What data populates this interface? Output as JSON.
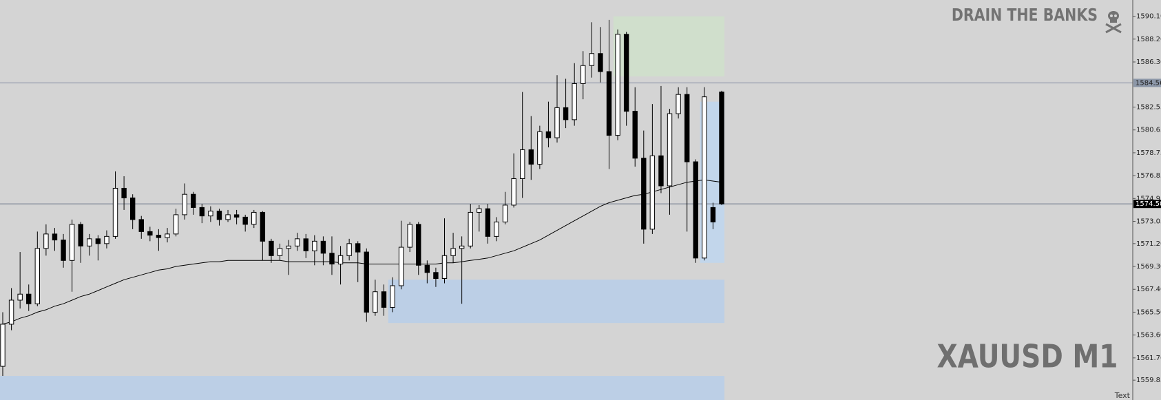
{
  "chart_data": {
    "type": "candlestick",
    "watermark_title": "DRAIN THE BANKS",
    "symbol": "XAUUSD M1",
    "corner_text": "Text",
    "ylim": [
      1558.2,
      1591.45
    ],
    "yticks": [
      {
        "value": 1590.1,
        "label": "1590.10"
      },
      {
        "value": 1588.2,
        "label": "1588.20"
      },
      {
        "value": 1586.3,
        "label": "1586.30"
      },
      1582.55,
      1580.65,
      1578.75,
      1576.85,
      1574.95,
      1573.05,
      {
        "value": 1571.2,
        "label": "1571.20"
      },
      {
        "value": 1569.3,
        "label": "1569.30"
      },
      {
        "value": 1567.4,
        "label": "1567.40"
      },
      {
        "value": 1565.5,
        "label": "1565.50"
      },
      {
        "value": 1563.6,
        "label": "1563.60"
      },
      {
        "value": 1561.7,
        "label": "1561.70"
      },
      1559.85
    ],
    "price_lines": [
      1584.56
    ],
    "current_price": {
      "value": 1574.5,
      "label": "1574.50"
    },
    "bull_color": "#ffffff",
    "bear_color": "#000000",
    "open": [
      1561.0,
      1564.5,
      1566.5,
      1567.0,
      1566.2,
      1570.8,
      1572.0,
      1571.5,
      1569.8,
      1572.8,
      1571.0,
      1571.6,
      1571.2,
      1571.8,
      1575.8,
      1575.0,
      1573.2,
      1572.2,
      1571.9,
      1571.7,
      1572.0,
      1573.6,
      1575.3,
      1574.2,
      1573.5,
      1573.9,
      1573.2,
      1573.6,
      1573.4,
      1572.8,
      1573.8,
      1571.4,
      1570.2,
      1570.8,
      1571.0,
      1571.6,
      1570.6,
      1571.4,
      1570.4,
      1569.5,
      1570.2,
      1571.2,
      1570.5,
      1565.5,
      1567.2,
      1565.9,
      1567.7,
      1570.9,
      1572.8,
      1569.4,
      1568.8,
      1568.3,
      1570.2,
      1570.8,
      1571.0,
      1573.8,
      1574.1,
      1571.8,
      1573.0,
      1574.4,
      1576.6,
      1579.0,
      1577.8,
      1580.5,
      1580.0,
      1582.5,
      1581.5,
      1584.5,
      1586.0,
      1587.0,
      1585.5,
      1580.2,
      1588.6,
      1582.2,
      1578.3,
      1572.4,
      1578.5,
      1576.0,
      1582.0,
      1583.6,
      1578.0,
      1570.0,
      1574.2,
      1583.8
    ],
    "high": [
      1565.5,
      1567.5,
      1570.5,
      1567.8,
      1572.2,
      1572.8,
      1572.5,
      1572.0,
      1573.2,
      1573.0,
      1572.0,
      1571.9,
      1572.3,
      1577.2,
      1576.8,
      1575.3,
      1573.5,
      1572.6,
      1572.4,
      1572.5,
      1574.1,
      1576.2,
      1575.5,
      1574.5,
      1574.3,
      1574.1,
      1574.0,
      1574.0,
      1573.6,
      1574.0,
      1573.9,
      1571.6,
      1571.2,
      1571.5,
      1572.1,
      1572.0,
      1571.9,
      1571.8,
      1571.8,
      1571.0,
      1571.6,
      1571.4,
      1570.8,
      1568.2,
      1567.8,
      1568.4,
      1573.1,
      1573.0,
      1573.0,
      1569.8,
      1569.2,
      1573.3,
      1572.1,
      1571.8,
      1574.5,
      1574.4,
      1574.5,
      1573.4,
      1575.5,
      1578.7,
      1583.8,
      1581.8,
      1581.0,
      1583.0,
      1585.2,
      1584.9,
      1586.2,
      1587.2,
      1589.6,
      1589.2,
      1589.8,
      1589.0,
      1588.8,
      1584.2,
      1580.6,
      1582.8,
      1584.3,
      1582.4,
      1584.2,
      1584.2,
      1578.2,
      1584.2,
      1574.6,
      1583.9
    ],
    "low": [
      1560.2,
      1564.0,
      1565.8,
      1565.6,
      1566.0,
      1570.2,
      1570.6,
      1569.2,
      1567.2,
      1569.6,
      1570.2,
      1569.8,
      1570.8,
      1571.6,
      1574.0,
      1572.4,
      1571.6,
      1571.4,
      1570.6,
      1571.3,
      1571.8,
      1573.2,
      1573.6,
      1572.9,
      1573.0,
      1572.7,
      1573.0,
      1572.8,
      1572.2,
      1572.5,
      1569.8,
      1569.6,
      1569.8,
      1568.6,
      1570.6,
      1570.0,
      1569.4,
      1569.4,
      1568.6,
      1567.8,
      1569.8,
      1568.0,
      1564.7,
      1565.2,
      1565.2,
      1565.5,
      1567.4,
      1570.5,
      1568.6,
      1567.9,
      1567.6,
      1567.9,
      1569.6,
      1566.2,
      1570.8,
      1572.2,
      1571.2,
      1571.4,
      1572.8,
      1574.2,
      1575.0,
      1576.5,
      1577.4,
      1579.2,
      1579.6,
      1580.8,
      1581.0,
      1583.2,
      1585.0,
      1584.6,
      1577.4,
      1579.8,
      1581.0,
      1577.6,
      1571.2,
      1572.0,
      1575.4,
      1573.6,
      1581.6,
      1572.2,
      1569.6,
      1569.8,
      1572.4,
      1574.4
    ],
    "close": [
      1564.5,
      1566.5,
      1567.0,
      1566.2,
      1570.8,
      1572.0,
      1571.5,
      1569.8,
      1572.8,
      1571.0,
      1571.6,
      1571.2,
      1571.8,
      1575.8,
      1575.0,
      1573.2,
      1572.2,
      1571.9,
      1571.7,
      1572.0,
      1573.6,
      1575.3,
      1574.2,
      1573.5,
      1573.9,
      1573.2,
      1573.6,
      1573.4,
      1572.8,
      1573.8,
      1571.4,
      1570.2,
      1570.8,
      1571.0,
      1571.6,
      1570.6,
      1571.4,
      1570.4,
      1569.5,
      1570.2,
      1571.2,
      1570.5,
      1565.5,
      1567.2,
      1565.9,
      1567.7,
      1570.9,
      1572.8,
      1569.4,
      1568.8,
      1568.3,
      1570.2,
      1570.8,
      1571.0,
      1573.8,
      1574.1,
      1571.8,
      1573.0,
      1574.4,
      1576.6,
      1579.0,
      1577.8,
      1580.5,
      1580.0,
      1582.5,
      1581.5,
      1584.5,
      1586.0,
      1587.0,
      1585.5,
      1580.2,
      1588.6,
      1582.2,
      1578.3,
      1572.4,
      1578.5,
      1576.0,
      1582.0,
      1583.6,
      1578.0,
      1570.0,
      1583.4,
      1573.0,
      1574.5
    ],
    "moving_average": {
      "color": "#000000",
      "values": [
        1564.5,
        1564.7,
        1565.0,
        1565.2,
        1565.5,
        1565.7,
        1566.0,
        1566.2,
        1566.5,
        1566.8,
        1567.0,
        1567.3,
        1567.6,
        1567.9,
        1568.2,
        1568.4,
        1568.6,
        1568.8,
        1569.0,
        1569.1,
        1569.3,
        1569.4,
        1569.5,
        1569.6,
        1569.7,
        1569.7,
        1569.8,
        1569.8,
        1569.8,
        1569.8,
        1569.8,
        1569.8,
        1569.8,
        1569.7,
        1569.7,
        1569.7,
        1569.7,
        1569.7,
        1569.7,
        1569.6,
        1569.6,
        1569.6,
        1569.5,
        1569.5,
        1569.5,
        1569.5,
        1569.5,
        1569.5,
        1569.5,
        1569.5,
        1569.5,
        1569.6,
        1569.6,
        1569.7,
        1569.8,
        1569.9,
        1570.0,
        1570.2,
        1570.4,
        1570.6,
        1570.9,
        1571.2,
        1571.5,
        1571.9,
        1572.3,
        1572.7,
        1573.1,
        1573.5,
        1573.9,
        1574.3,
        1574.6,
        1574.8,
        1575.0,
        1575.2,
        1575.3,
        1575.5,
        1575.7,
        1575.9,
        1576.1,
        1576.3,
        1576.4,
        1576.5,
        1576.4,
        1576.3
      ]
    },
    "zones": [
      {
        "start": 71,
        "top": 1590.1,
        "bottom": 1585.1,
        "color": "#d0dfcc"
      },
      {
        "start": 81,
        "top": 1583.0,
        "bottom": 1569.6,
        "color": "#c2d6eb"
      },
      {
        "start": 45,
        "top": 1568.2,
        "bottom": 1564.6,
        "color": "#bccfe6"
      },
      {
        "start": 0,
        "top": 1560.2,
        "bottom": 1558.2,
        "color": "#bccfe6"
      }
    ]
  }
}
